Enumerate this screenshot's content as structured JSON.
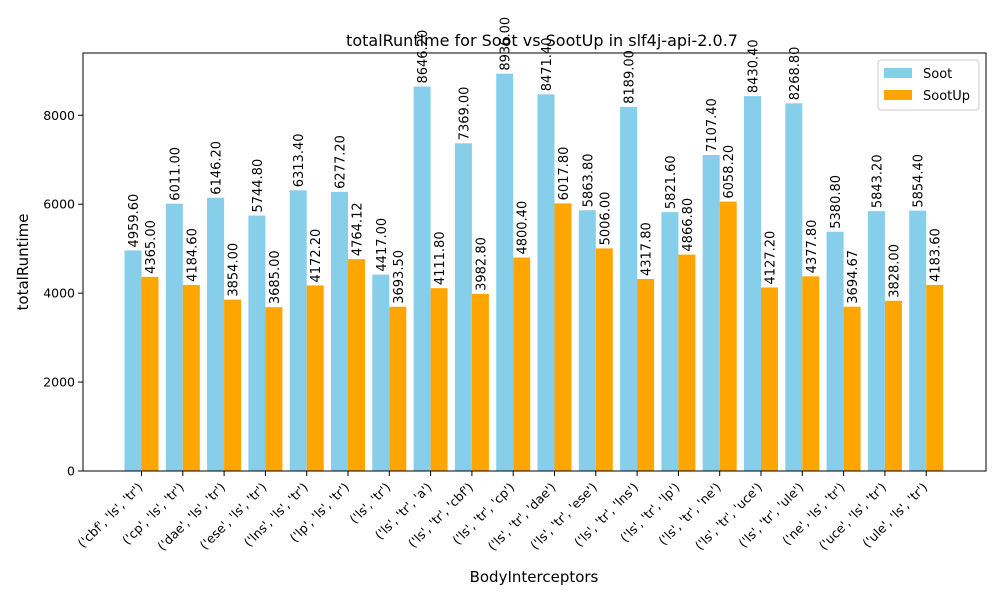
{
  "chart_data": {
    "type": "bar",
    "title": "totalRuntime for Soot vs SootUp in slf4j-api-2.0.7",
    "xlabel": "BodyInterceptors",
    "ylabel": "totalRuntime",
    "ylim": [
      0,
      9400
    ],
    "yticks": [
      0,
      2000,
      4000,
      6000,
      8000
    ],
    "grid": false,
    "legend_position": "top-right",
    "categories": [
      "('cbf', 'ls', 'tr')",
      "('cp', 'ls', 'tr')",
      "('dae', 'ls', 'tr')",
      "('ese', 'ls', 'tr')",
      "('lns', 'ls', 'tr')",
      "('lp', 'ls', 'tr')",
      "('ls', 'tr')",
      "('ls', 'tr', 'a')",
      "('ls', 'tr', 'cbf')",
      "('ls', 'tr', 'cp')",
      "('ls', 'tr', 'dae')",
      "('ls', 'tr', 'ese')",
      "('ls', 'tr', 'lns')",
      "('ls', 'tr', 'lp')",
      "('ls', 'tr', 'ne')",
      "('ls', 'tr', 'uce')",
      "('ls', 'tr', 'ule')",
      "('ne', 'ls', 'tr')",
      "('uce', 'ls', 'tr')",
      "('ule', 'ls', 'tr')"
    ],
    "series": [
      {
        "name": "Soot",
        "color": "#87ceeb",
        "values": [
          4959.6,
          6011.0,
          6146.2,
          5744.8,
          6313.4,
          6277.2,
          4417.0,
          8646.2,
          7369.0,
          8936.0,
          8471.4,
          5863.8,
          8189.0,
          5821.6,
          7107.4,
          8430.4,
          8268.8,
          5380.8,
          5843.2,
          5854.4
        ],
        "labels": [
          "4959.60",
          "6011.00",
          "6146.20",
          "5744.80",
          "6313.40",
          "6277.20",
          "4417.00",
          "8646.20",
          "7369.00",
          "8936.00",
          "8471.40",
          "5863.80",
          "8189.00",
          "5821.60",
          "7107.40",
          "8430.40",
          "8268.80",
          "5380.80",
          "5843.20",
          "5854.40"
        ]
      },
      {
        "name": "SootUp",
        "color": "#ffa500",
        "values": [
          4365.0,
          4184.6,
          3854.0,
          3685.0,
          4172.2,
          4764.12,
          3693.5,
          4111.8,
          3982.8,
          4800.4,
          6017.8,
          5006.0,
          4317.8,
          4866.8,
          6058.2,
          4127.2,
          4377.8,
          3694.67,
          3828.0,
          4183.6
        ],
        "labels": [
          "4365.00",
          "4184.60",
          "3854.00",
          "3685.00",
          "4172.20",
          "4764.12",
          "3693.50",
          "4111.80",
          "3982.80",
          "4800.40",
          "6017.80",
          "5006.00",
          "4317.80",
          "4866.80",
          "6058.20",
          "4127.20",
          "4377.80",
          "3694.67",
          "3828.00",
          "4183.60"
        ]
      }
    ]
  }
}
